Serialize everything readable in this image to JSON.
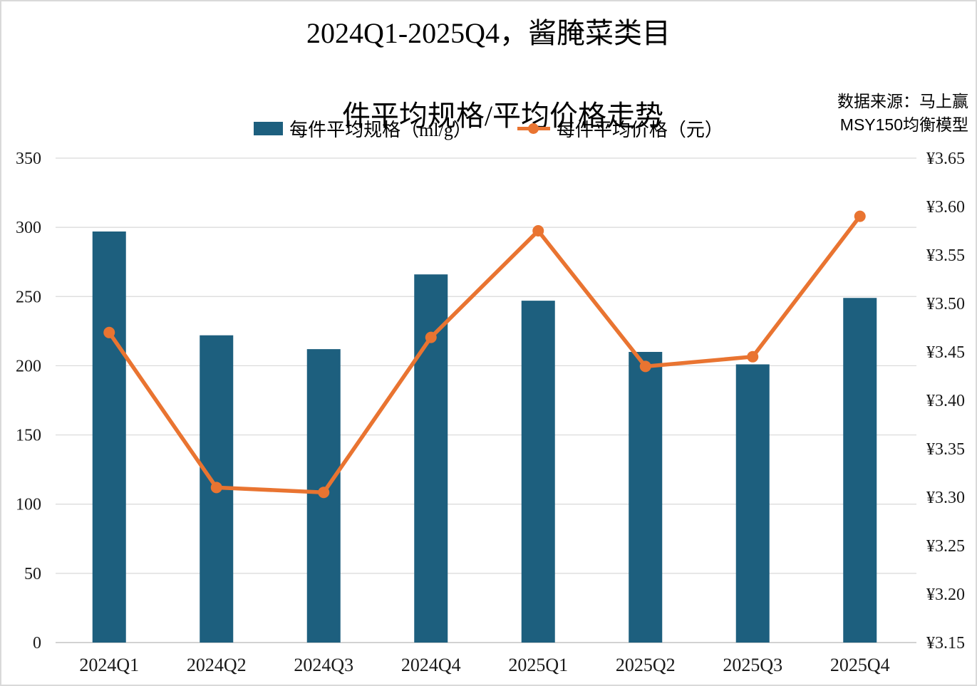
{
  "title": {
    "line1": "2024Q1-2025Q4，酱腌菜类目",
    "line2": "件平均规格/平均价格走势"
  },
  "source": {
    "line1": "数据来源：马上赢",
    "line2": "MSY150均衡模型"
  },
  "legend": {
    "items": [
      {
        "label": "每件平均规格（ml/g）",
        "marker": "bar-swatch",
        "color": "#1d5f7e"
      },
      {
        "label": "每件平均价格（元）",
        "marker": "line-swatch",
        "color": "#e97431"
      }
    ]
  },
  "chart_data": {
    "type": "bar",
    "subtype": "dual-axis bar + line combo",
    "title": "2024Q1-2025Q4，酱腌菜类目 件平均规格/平均价格走势",
    "categories": [
      "2024Q1",
      "2024Q2",
      "2024Q3",
      "2024Q4",
      "2025Q1",
      "2025Q2",
      "2025Q3",
      "2025Q4"
    ],
    "series": [
      {
        "name": "每件平均规格（ml/g）",
        "type": "bar",
        "axis": "left",
        "color": "#1d5f7e",
        "values": [
          297,
          222,
          212,
          266,
          247,
          210,
          201,
          249
        ]
      },
      {
        "name": "每件平均价格（元）",
        "type": "line",
        "axis": "right",
        "color": "#e97431",
        "values": [
          3.47,
          3.31,
          3.305,
          3.465,
          3.575,
          3.435,
          3.445,
          3.59
        ]
      }
    ],
    "left_axis": {
      "min": 0,
      "max": 350,
      "step": 50,
      "tick_labels": [
        "350",
        "300",
        "250",
        "200",
        "150",
        "100",
        "50",
        "0"
      ]
    },
    "right_axis": {
      "min": 3.15,
      "max": 3.65,
      "step": 0.05,
      "tick_labels": [
        "¥3.65",
        "¥3.60",
        "¥3.55",
        "¥3.50",
        "¥3.45",
        "¥3.40",
        "¥3.35",
        "¥3.30",
        "¥3.25",
        "¥3.20",
        "¥3.15"
      ]
    },
    "grid": "horizontal",
    "legend_position": "top",
    "grid_color": "#d9d9d9",
    "axis_line_color": "#c4c4c4"
  }
}
